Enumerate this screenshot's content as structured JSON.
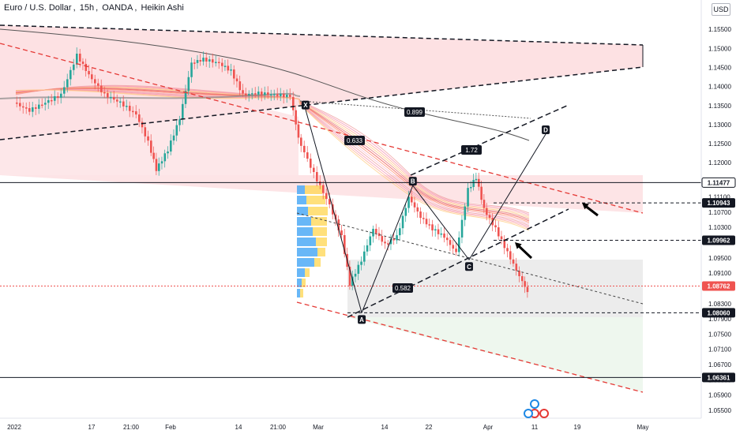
{
  "header": {
    "symbol": "Euro / U.S. Dollar",
    "interval": "15h",
    "broker": "OANDA",
    "chart_style": "Heikin Ashi",
    "separator": ",",
    "currency": "USD"
  },
  "colors": {
    "up": "#26a69a",
    "down": "#ef5350",
    "trend_line": "#131722",
    "red_dashed": "#e53935",
    "pink_zone": "#fde1e3",
    "grey_zone": "#ececec",
    "green_zone": "#eef7ee",
    "profile_blue": "#42a5f5",
    "profile_yellow": "#ffd54f",
    "arrow": "#000000"
  },
  "chart_data": {
    "type": "candlestick",
    "ylim": [
      1.0525,
      1.1596
    ],
    "price_ticks": [
      "1.15500",
      "1.15000",
      "1.14500",
      "1.14000",
      "1.13500",
      "1.13000",
      "1.12500",
      "1.12000",
      "1.11500",
      "1.11100",
      "1.10700",
      "1.10300",
      "1.09900",
      "1.09500",
      "1.09100",
      "1.08700",
      "1.08300",
      "1.07900",
      "1.07500",
      "1.07100",
      "1.06700",
      "1.06300",
      "1.05900",
      "1.05500"
    ],
    "time_ticks": [
      "2022",
      "17",
      "21:00",
      "Feb",
      "14",
      "21:00",
      "Mar",
      "14",
      "22",
      "Apr",
      "11",
      "19",
      "May"
    ],
    "price_labels": [
      {
        "text": "1.11477",
        "value": 1.11477,
        "style": "outline"
      },
      {
        "text": "1.10943",
        "value": 1.10943,
        "style": "dark"
      },
      {
        "text": "1.09962",
        "value": 1.09962,
        "style": "dark"
      },
      {
        "text": "1.08762",
        "value": 1.08762,
        "style": "red"
      },
      {
        "text": "1.08060",
        "value": 1.0806,
        "style": "dark"
      },
      {
        "text": "1.06361",
        "value": 1.06361,
        "style": "dark"
      }
    ],
    "pattern_points": [
      {
        "label": "X",
        "date": "2022-02-24",
        "value": 1.134
      },
      {
        "label": "A",
        "date": "2022-03-07",
        "value": 1.0806
      },
      {
        "label": "B",
        "date": "2022-03-17",
        "value": 1.114
      },
      {
        "label": "C",
        "date": "2022-03-28",
        "value": 1.0945
      },
      {
        "label": "D",
        "date": "2022-04-12",
        "value": 1.1275
      }
    ],
    "ratios": [
      {
        "text": "0.899"
      },
      {
        "text": "0.633"
      },
      {
        "text": "1.72"
      },
      {
        "text": "0.582"
      }
    ]
  }
}
